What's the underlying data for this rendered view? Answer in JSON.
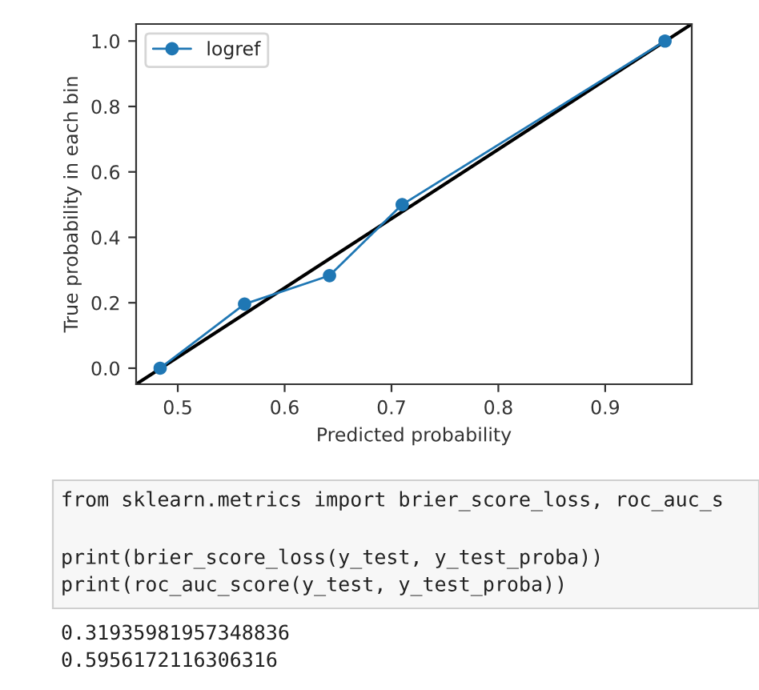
{
  "chart_data": {
    "type": "line",
    "xlabel": "Predicted probability",
    "ylabel": "True probability in each bin",
    "xlim": [
      0.461,
      0.981
    ],
    "ylim": [
      -0.049,
      1.052
    ],
    "xticks": [
      0.5,
      0.6,
      0.7,
      0.8,
      0.9
    ],
    "yticks": [
      {
        "value": 0,
        "label": "0.0"
      },
      0.2,
      0.4,
      0.6,
      0.8,
      {
        "value": 1,
        "label": "1.0"
      }
    ],
    "series": [
      {
        "name": "logref",
        "color": "#1f77b4",
        "marker": "circle",
        "x": [
          0.4835,
          0.5625,
          0.642,
          0.71,
          0.956
        ],
        "values": [
          0.0,
          0.196,
          0.283,
          0.5,
          1.0
        ]
      },
      {
        "color": "#000000",
        "x": [
          0.461,
          0.981
        ],
        "values": [
          -0.049,
          1.052
        ]
      }
    ],
    "grid": false,
    "legend": "top left",
    "annotations": [
      "from sklearn.metrics import brier_score_loss, roc_auc_s",
      "print(brier_score_loss(y_test, y_test_proba))",
      "print(roc_auc_score(y_test, y_test_proba))",
      "0.31935981957348836",
      "0.5956172116306316"
    ]
  }
}
